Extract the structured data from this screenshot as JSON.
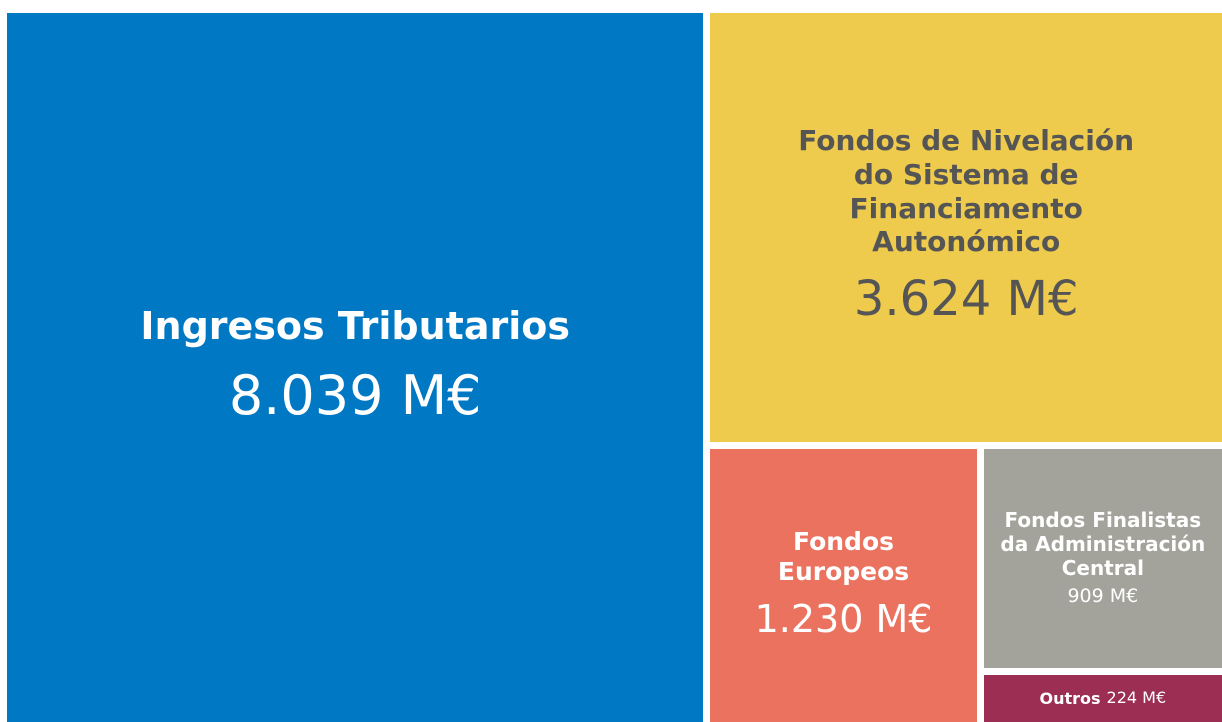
{
  "chart_data": {
    "type": "treemap",
    "categories": [
      "Ingresos Tributarios",
      "Fondos de Nivelación do Sistema de Financiamento Autonómico",
      "Fondos Europeos",
      "Fondos Finalistas da Administración Central",
      "Outros"
    ],
    "values": [
      8039,
      3624,
      1230,
      909,
      224
    ],
    "value_labels": [
      "8.039 M€",
      "3.624 M€",
      "1.230 M€",
      "909 M€",
      "224 M€"
    ],
    "colors": [
      "#0078c4",
      "#eecb4c",
      "#ec7260",
      "#a3a39b",
      "#9b2e52"
    ]
  }
}
